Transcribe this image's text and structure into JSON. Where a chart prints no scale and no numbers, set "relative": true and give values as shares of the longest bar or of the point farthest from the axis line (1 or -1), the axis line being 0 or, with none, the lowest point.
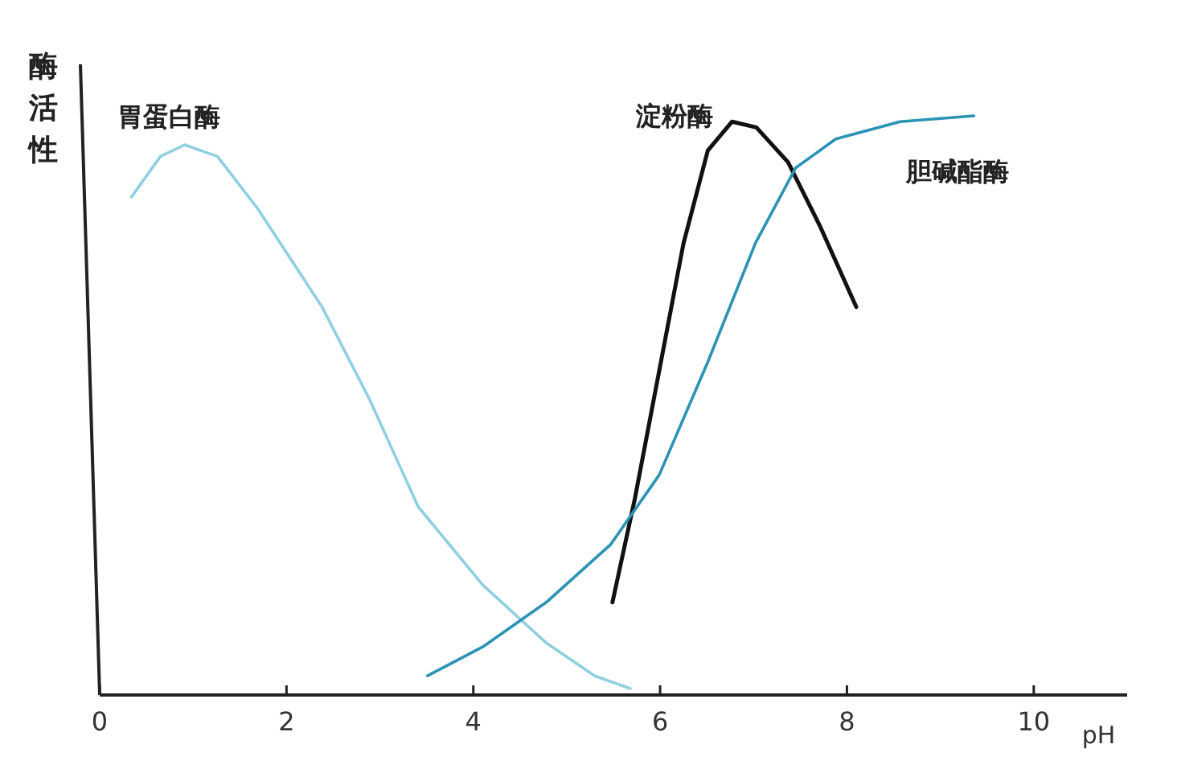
{
  "chart_data": {
    "type": "line",
    "relative": true,
    "ylabel": "酶活性",
    "xlabel": "pH",
    "xlim": [
      0,
      11
    ],
    "xticks": [
      0,
      2,
      4,
      6,
      8,
      10
    ],
    "grid": false,
    "marker": "none",
    "line_style": "solid",
    "series": [
      {
        "name": "胃蛋白酶",
        "color": "#8fd0e0",
        "x": [
          0.34,
          0.65,
          0.91,
          1.26,
          1.69,
          2.38,
          2.89,
          3.41,
          4.1,
          4.78,
          5.3,
          5.68
        ],
        "values": [
          0.86,
          0.93,
          0.95,
          0.93,
          0.84,
          0.67,
          0.51,
          0.325,
          0.19,
          0.09,
          0.033,
          0.011
        ]
      },
      {
        "name": "淀粉酶",
        "color": "#111111",
        "x": [
          5.49,
          5.73,
          5.99,
          6.25,
          6.51,
          6.77,
          7.03,
          7.37,
          7.71,
          8.1
        ],
        "values": [
          0.16,
          0.34,
          0.56,
          0.78,
          0.94,
          0.99,
          0.98,
          0.92,
          0.81,
          0.67
        ]
      },
      {
        "name": "胆碱酯酶",
        "color": "#2b93b5",
        "x": [
          3.51,
          4.1,
          4.78,
          5.47,
          5.99,
          6.51,
          7.02,
          7.45,
          7.88,
          8.57,
          9.36
        ],
        "values": [
          0.033,
          0.083,
          0.16,
          0.26,
          0.38,
          0.575,
          0.78,
          0.91,
          0.96,
          0.99,
          1.0
        ]
      }
    ]
  }
}
